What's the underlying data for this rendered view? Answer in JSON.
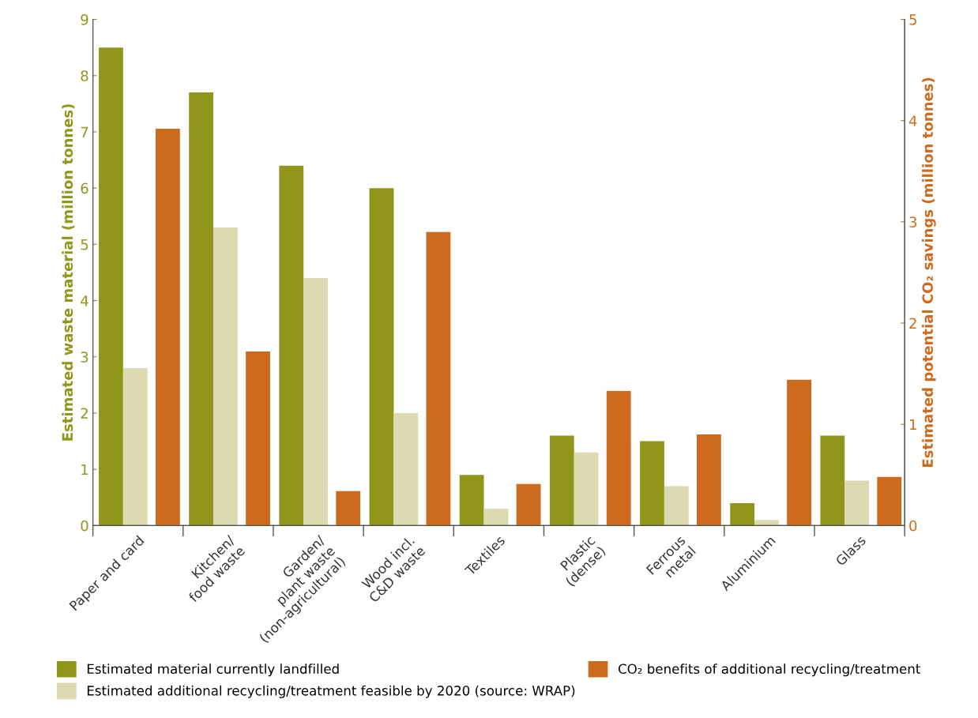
{
  "chart_data": {
    "type": "bar",
    "ylabel": "Estimated waste material (million tonnes)",
    "y2label": "Estimated potential CO₂ savings (million tonnes)",
    "categories": [
      "Paper and card",
      "Kitchen/\nfood waste",
      "Garden/\nplant waste\n(non-agricultural)",
      "Wood incl.\nC&D waste",
      "Textiles",
      "Plastic\n(dense)",
      "Ferrous\nmetal",
      "Aluminium",
      "Glass"
    ],
    "series": [
      {
        "name": "Estimated material currently landfilled",
        "color": "#8f961a",
        "values": [
          8.5,
          7.7,
          6.4,
          6.0,
          0.9,
          1.6,
          1.5,
          0.4,
          1.6
        ]
      },
      {
        "name": "Estimated additional recycling/treatment feasible by 2020 (source: WRAP)",
        "color": "#dbdab0",
        "values": [
          2.8,
          5.3,
          4.4,
          2.0,
          0.3,
          1.3,
          0.7,
          0.1,
          0.8
        ]
      },
      {
        "name": "CO₂ benefits of additional recycling/treatment",
        "color": "#cd6a1d",
        "axis": "y2",
        "values": [
          3.92,
          1.72,
          0.34,
          2.9,
          0.41,
          1.33,
          0.9,
          1.44,
          0.48
        ]
      }
    ],
    "ylim": [
      0,
      9
    ],
    "yticks": [
      0,
      1,
      2,
      3,
      4,
      5,
      6,
      7,
      8,
      9
    ],
    "y2lim": [
      0,
      5
    ],
    "y2ticks": [
      0,
      1,
      2,
      3,
      4,
      5
    ],
    "grid": false,
    "legend": "bottom"
  }
}
